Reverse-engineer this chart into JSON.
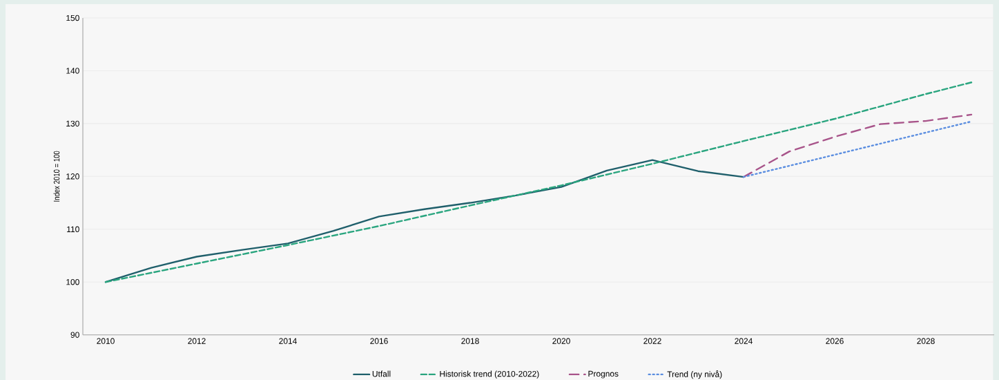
{
  "chart_data": {
    "type": "line",
    "ylabel": "Index 2010 = 100",
    "xlim": [
      2009.5,
      2029.5
    ],
    "xticks": [
      2010,
      2012,
      2014,
      2016,
      2018,
      2020,
      2022,
      2024,
      2026,
      2028
    ],
    "ylim": [
      90,
      150
    ],
    "yticks": [
      90,
      100,
      110,
      120,
      130,
      140,
      150
    ],
    "grid": "y",
    "legend": "bottom",
    "series": [
      {
        "name": "Utfall",
        "color": "#1f5f6b",
        "line_style": "solid",
        "x": [
          2010,
          2011,
          2012,
          2013,
          2014,
          2015,
          2016,
          2017,
          2018,
          2019,
          2020,
          2021,
          2022,
          2023,
          2024
        ],
        "values": [
          100,
          102.7,
          104.8,
          106.1,
          107.3,
          109.7,
          112.4,
          113.8,
          115.0,
          116.4,
          118.0,
          121.1,
          123.1,
          121.0,
          119.9
        ]
      },
      {
        "name": "Historisk trend (2010-2022)",
        "color": "#2aa57f",
        "line_style": "dashed",
        "x": [
          2010,
          2012,
          2014,
          2016,
          2018,
          2020,
          2022,
          2024,
          2026,
          2028,
          2029
        ],
        "values": [
          100,
          103.5,
          107.0,
          110.6,
          114.5,
          118.3,
          122.4,
          126.7,
          130.9,
          135.6,
          137.8
        ]
      },
      {
        "name": "Prognos",
        "color": "#a8548a",
        "line_style": "dashed",
        "x": [
          2024,
          2025,
          2026,
          2027,
          2028,
          2029
        ],
        "values": [
          119.9,
          124.7,
          127.5,
          129.9,
          130.5,
          131.7
        ]
      },
      {
        "name": "Trend (ny nivå)",
        "color": "#5b8ee0",
        "line_style": "dotted",
        "x": [
          2024,
          2029
        ],
        "values": [
          119.9,
          130.4
        ]
      }
    ]
  }
}
